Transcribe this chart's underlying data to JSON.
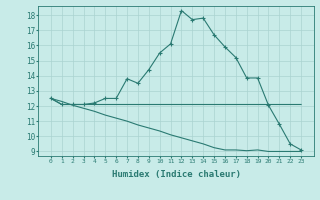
{
  "xlabel": "Humidex (Indice chaleur)",
  "x_values": [
    0,
    1,
    2,
    3,
    4,
    5,
    6,
    7,
    8,
    9,
    10,
    11,
    12,
    13,
    14,
    15,
    16,
    17,
    18,
    19,
    20,
    21,
    22,
    23
  ],
  "line1_y": [
    12.5,
    12.1,
    12.1,
    12.1,
    12.2,
    12.5,
    12.5,
    13.8,
    13.5,
    14.4,
    15.5,
    16.1,
    18.3,
    17.7,
    17.8,
    16.7,
    15.9,
    15.2,
    13.85,
    13.85,
    12.05,
    10.8,
    9.5,
    9.1
  ],
  "line2_y": [
    12.5,
    12.1,
    12.1,
    12.1,
    12.1,
    12.1,
    12.1,
    12.1,
    12.1,
    12.1,
    12.1,
    12.1,
    12.1,
    12.1,
    12.1,
    12.1,
    12.1,
    12.1,
    12.1,
    12.1,
    12.1,
    12.1,
    12.1,
    12.1
  ],
  "line3_y": [
    12.5,
    12.3,
    12.05,
    11.85,
    11.65,
    11.4,
    11.2,
    11.0,
    10.75,
    10.55,
    10.35,
    10.1,
    9.9,
    9.7,
    9.5,
    9.25,
    9.1,
    9.1,
    9.05,
    9.1,
    9.0,
    9.0,
    9.0,
    9.0
  ],
  "line_color": "#2a7a72",
  "bg_color": "#c8ebe8",
  "grid_color": "#aad4d0",
  "ylim_min": 8.7,
  "ylim_max": 18.6,
  "yticks": [
    9,
    10,
    11,
    12,
    13,
    14,
    15,
    16,
    17,
    18
  ],
  "xticks": [
    0,
    1,
    2,
    3,
    4,
    5,
    6,
    7,
    8,
    9,
    10,
    11,
    12,
    13,
    14,
    15,
    16,
    17,
    18,
    19,
    20,
    21,
    22,
    23
  ],
  "marker": "+"
}
